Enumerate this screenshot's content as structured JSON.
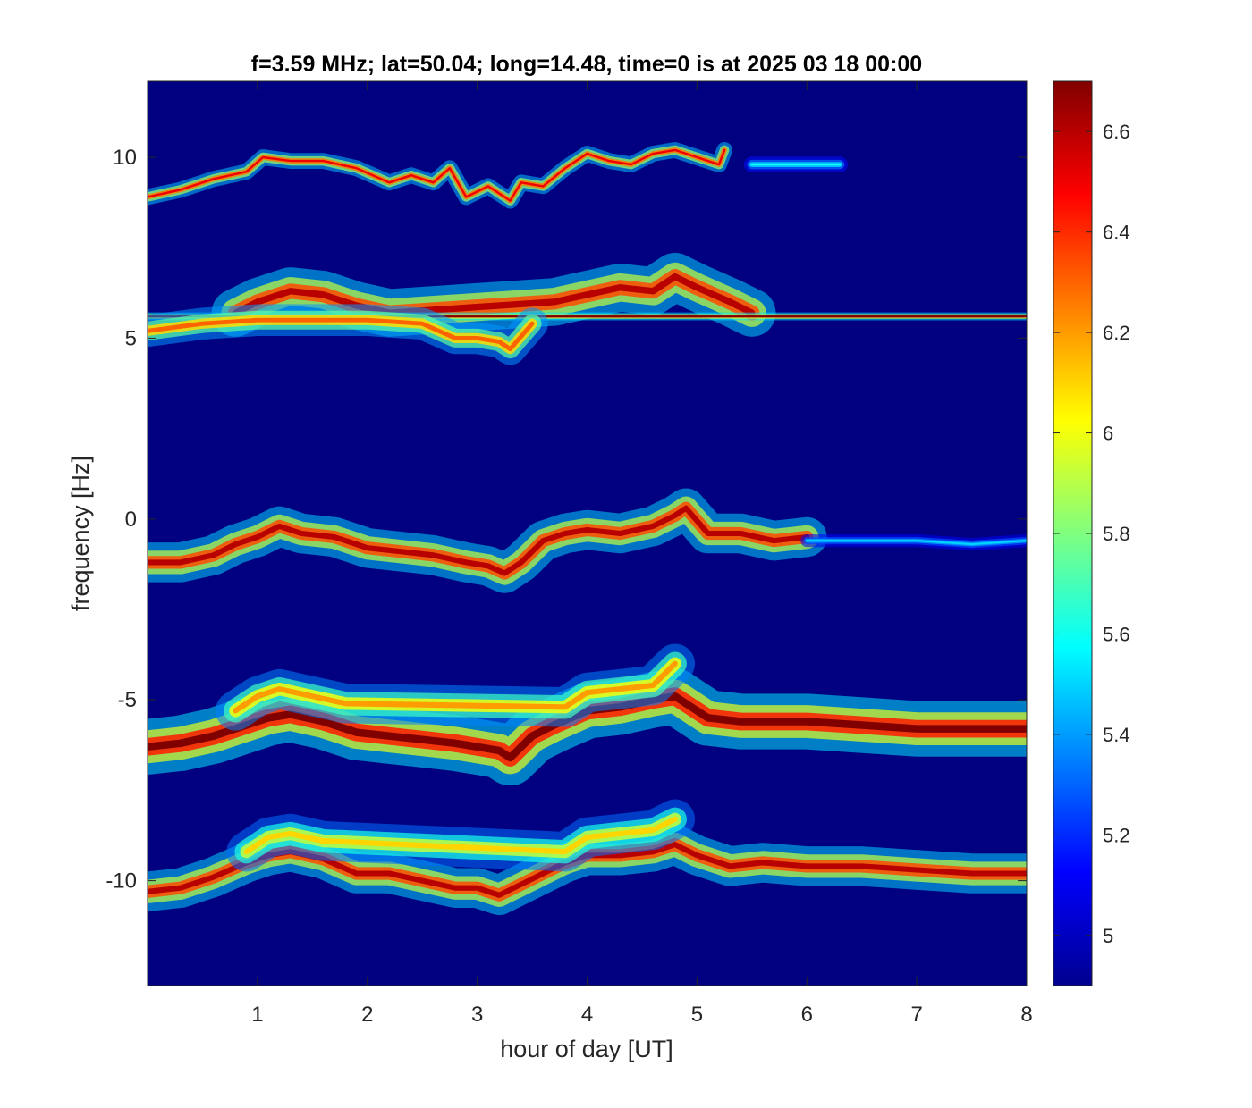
{
  "chart_data": {
    "type": "heatmap",
    "title": "f=3.59 MHz;  lat=50.04; long=14.48, time=0 is at 2025 03 18 00:00",
    "xlabel": "hour of day [UT]",
    "ylabel": "frequency [Hz]",
    "xlim": [
      0,
      8
    ],
    "ylim": [
      -12.9,
      12.1
    ],
    "xticks": [
      1,
      2,
      3,
      4,
      5,
      6,
      7,
      8
    ],
    "xtick_labels": [
      "1",
      "2",
      "3",
      "4",
      "5",
      "6",
      "7",
      "8"
    ],
    "yticks": [
      10,
      5,
      0,
      -5,
      -10
    ],
    "ytick_labels": [
      "10",
      "5",
      "0",
      "-5",
      "-10"
    ],
    "colormap": "jet",
    "background_value": 4.9,
    "colorbar": {
      "range": [
        4.9,
        6.7
      ],
      "ticks": [
        5,
        5.2,
        5.4,
        5.6,
        5.8,
        6,
        6.2,
        6.4,
        6.6
      ],
      "tick_labels": [
        "5",
        "5.2",
        "5.4",
        "5.6",
        "5.8",
        "6",
        "6.2",
        "6.4",
        "6.6"
      ]
    },
    "traces": [
      {
        "name": "",
        "intensity": 6.5,
        "spread": 0.1,
        "x": [
          0.0,
          0.3,
          0.6,
          0.9,
          1.05,
          1.3,
          1.6,
          1.9,
          2.2,
          2.4,
          2.6,
          2.75,
          2.9,
          3.1,
          3.3,
          3.4,
          3.6,
          3.8,
          4.0,
          4.2,
          4.4,
          4.6,
          4.8,
          5.0,
          5.2,
          5.25
        ],
        "y": [
          8.9,
          9.1,
          9.4,
          9.6,
          10.0,
          9.9,
          9.9,
          9.7,
          9.3,
          9.5,
          9.3,
          9.7,
          8.9,
          9.2,
          8.8,
          9.3,
          9.2,
          9.7,
          10.1,
          9.9,
          9.8,
          10.1,
          10.2,
          10.0,
          9.8,
          10.2
        ]
      },
      {
        "name": "",
        "intensity": 5.6,
        "spread": 0.1,
        "x": [
          5.5,
          5.8,
          6.1,
          6.3
        ],
        "y": [
          9.8,
          9.8,
          9.8,
          9.8
        ]
      },
      {
        "name": "",
        "intensity": 6.6,
        "spread": 0.3,
        "x": [
          0.8,
          1.0,
          1.3,
          1.6,
          1.9,
          2.2,
          3.7,
          4.0,
          4.3,
          4.6,
          4.8,
          5.0,
          5.3,
          5.5
        ],
        "y": [
          5.7,
          6.0,
          6.3,
          6.2,
          5.9,
          5.7,
          6.0,
          6.2,
          6.4,
          6.3,
          6.7,
          6.4,
          6.0,
          5.7
        ]
      },
      {
        "name": "",
        "intensity": 6.7,
        "spread": 0.05,
        "x": [
          0.0,
          2.0,
          4.0,
          6.0,
          8.0
        ],
        "y": [
          5.6,
          5.6,
          5.6,
          5.6,
          5.6
        ]
      },
      {
        "name": "",
        "intensity": 6.3,
        "spread": 0.2,
        "x": [
          0.0,
          0.5,
          1.0,
          1.5,
          2.0,
          2.5,
          2.8,
          3.0,
          3.2,
          3.3,
          3.5
        ],
        "y": [
          5.2,
          5.4,
          5.5,
          5.5,
          5.5,
          5.4,
          5.0,
          5.0,
          4.9,
          4.7,
          5.4
        ]
      },
      {
        "name": "",
        "intensity": 6.6,
        "spread": 0.25,
        "x": [
          0.0,
          0.3,
          0.6,
          0.8,
          1.0,
          1.2,
          1.4,
          1.7,
          2.0,
          2.3,
          2.6,
          2.9,
          3.1,
          3.25,
          3.4,
          3.6,
          3.8,
          4.0,
          4.3,
          4.6,
          4.8,
          4.9,
          5.1,
          5.4,
          5.7,
          6.0
        ],
        "y": [
          -1.2,
          -1.2,
          -1.0,
          -0.7,
          -0.5,
          -0.2,
          -0.4,
          -0.5,
          -0.8,
          -0.9,
          -1.0,
          -1.2,
          -1.3,
          -1.5,
          -1.2,
          -0.6,
          -0.4,
          -0.3,
          -0.4,
          -0.2,
          0.1,
          0.3,
          -0.4,
          -0.4,
          -0.6,
          -0.5
        ]
      },
      {
        "name": "",
        "intensity": 5.5,
        "spread": 0.08,
        "x": [
          6.0,
          6.5,
          7.0,
          7.5,
          8.0
        ],
        "y": [
          -0.6,
          -0.6,
          -0.6,
          -0.7,
          -0.6
        ]
      },
      {
        "name": "",
        "intensity": 6.7,
        "spread": 0.35,
        "x": [
          0.0,
          0.3,
          0.6,
          0.9,
          1.1,
          1.3,
          1.6,
          1.9,
          2.2,
          2.5,
          2.8,
          3.0,
          3.2,
          3.3,
          3.5,
          3.7,
          4.0,
          4.3,
          4.6,
          4.8,
          4.9,
          5.1,
          5.4,
          5.7,
          6.0,
          6.5,
          7.0,
          7.5,
          8.0
        ],
        "y": [
          -6.3,
          -6.2,
          -6.0,
          -5.7,
          -5.5,
          -5.4,
          -5.6,
          -5.9,
          -6.0,
          -6.1,
          -6.2,
          -6.3,
          -6.4,
          -6.6,
          -6.0,
          -5.7,
          -5.3,
          -5.2,
          -5.0,
          -4.9,
          -5.1,
          -5.5,
          -5.6,
          -5.6,
          -5.6,
          -5.7,
          -5.8,
          -5.8,
          -5.8
        ]
      },
      {
        "name": "",
        "intensity": 6.2,
        "spread": 0.25,
        "x": [
          0.8,
          1.0,
          1.2,
          1.5,
          1.8,
          3.8,
          4.0,
          4.3,
          4.6,
          4.8
        ],
        "y": [
          -5.3,
          -4.9,
          -4.7,
          -4.9,
          -5.1,
          -5.2,
          -4.8,
          -4.7,
          -4.6,
          -4.0
        ]
      },
      {
        "name": "",
        "intensity": 6.6,
        "spread": 0.25,
        "x": [
          0.0,
          0.3,
          0.6,
          0.9,
          1.1,
          1.3,
          1.6,
          1.9,
          2.2,
          2.5,
          2.8,
          3.0,
          3.2,
          3.4,
          3.6,
          3.8,
          4.0,
          4.3,
          4.6,
          4.8,
          5.0,
          5.3,
          5.6,
          6.0,
          6.5,
          7.0,
          7.5,
          8.0
        ],
        "y": [
          -10.3,
          -10.2,
          -9.9,
          -9.5,
          -9.3,
          -9.2,
          -9.4,
          -9.8,
          -9.8,
          -10.0,
          -10.2,
          -10.2,
          -10.4,
          -10.1,
          -9.8,
          -9.5,
          -9.3,
          -9.3,
          -9.2,
          -9.0,
          -9.3,
          -9.6,
          -9.5,
          -9.6,
          -9.6,
          -9.7,
          -9.8,
          -9.8
        ]
      },
      {
        "name": "",
        "intensity": 6.1,
        "spread": 0.25,
        "x": [
          0.9,
          1.1,
          1.3,
          1.6,
          3.8,
          4.0,
          4.3,
          4.6,
          4.8
        ],
        "y": [
          -9.2,
          -8.8,
          -8.7,
          -8.9,
          -9.2,
          -8.8,
          -8.7,
          -8.6,
          -8.3
        ]
      }
    ]
  }
}
